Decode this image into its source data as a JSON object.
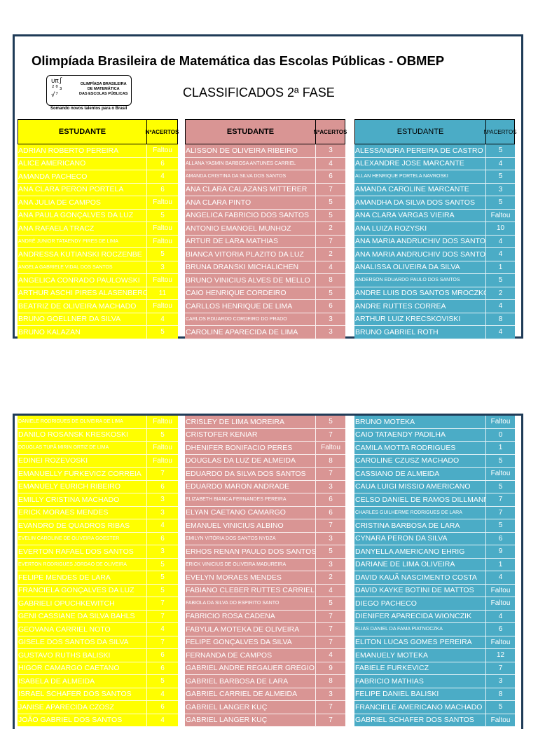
{
  "title": "Olimpíada Brasileira de Matemática das Escolas Públicas - OBMEP",
  "subtitle": "CLASSIFICADOS 2ª FASE",
  "logo": {
    "text": "OLIMPÍADA BRASILEIRA\nDE MATEMÁTICA\nDAS ESCOLAS PÚBLICAS",
    "tagline": "Somando novos talentos para o Brasil"
  },
  "headers": {
    "student": "ESTUDANTE",
    "hits_line1": "Nº",
    "hits_line2": "ACERTOS"
  },
  "colors": {
    "yellow": "#ffff00",
    "pink": "#d99594",
    "blue": "#4bacc6",
    "frame": "#1f3b57"
  },
  "section1": {
    "yellow": [
      [
        "ADRIAN ROBERTO PEREIRA",
        "Faltou"
      ],
      [
        "ALICE AMERICANO",
        "6"
      ],
      [
        "AMANDA PACHECO",
        "4"
      ],
      [
        "ANA CLARA PERON PORTELA",
        "6"
      ],
      [
        "ANA JULIA DE CAMPOS",
        "Faltou"
      ],
      [
        "ANA PAULA GONÇALVES DA LUZ",
        "5"
      ],
      [
        "ANA RAFAELA TRACZ",
        "Faltou"
      ],
      [
        "ANDRÉ JUNIOR TATAENDY PIRES DE LIMA",
        "Faltou"
      ],
      [
        "ANDRESSA KUTIANSKI ROCZENBE",
        "5"
      ],
      [
        "ANGELA GABRIELE VIDAL DOS SANTOS",
        "3"
      ],
      [
        "ANGELICA CONRADO PAULOWSKI",
        "Faltou"
      ],
      [
        "ARTHUR ASCHI PIRES ALASENBERG",
        "11"
      ],
      [
        "BEATRIZ DE OLIVEIRA MACHADO",
        "Faltou"
      ],
      [
        "BRUNO GOELLNER DA SILVA",
        "4"
      ],
      [
        "BRUNO KALAZAN",
        "5"
      ]
    ],
    "pink": [
      [
        "ALISSON DE OLIVEIRA RIBEIRO",
        "3"
      ],
      [
        "ALLANA YASMIN BARBOSA ANTUNES CARRIEL",
        "4"
      ],
      [
        "AMANDA CRISTINA DA SILVA DOS SANTOS",
        "6"
      ],
      [
        "ANA CLARA CALAZANS MITTERER",
        "7"
      ],
      [
        "ANA CLARA PINTO",
        "5"
      ],
      [
        "ANGELICA FABRICIO DOS SANTOS",
        "5"
      ],
      [
        "ANTONIO EMANOEL MUNHOZ",
        "2"
      ],
      [
        "ARTUR DE LARA MATHIAS",
        "7"
      ],
      [
        "BIANCA VITORIA PLAZITO DA LUZ",
        "2"
      ],
      [
        "BRUNA DRANSKI MICHALICHEN",
        "4"
      ],
      [
        "BRUNO VINICIUS ALVES DE MELLO",
        "8"
      ],
      [
        "CAIO HENRIQUE CORDEIRO",
        "5"
      ],
      [
        "CARLLOS HENRIQUE DE LIMA",
        "6"
      ],
      [
        "CARLOS EDUARDO CORDEIRO DO PRADO",
        "3"
      ],
      [
        "CAROLINE APARECIDA DE LIMA",
        "3"
      ]
    ],
    "blue": [
      [
        "ALESSANDRA PEREIRA DE CASTRO",
        "5"
      ],
      [
        "ALEXANDRE JOSE MARCANTE",
        "4"
      ],
      [
        "ALLAN HENRIQUE PORTELA NAVROSKI",
        "5"
      ],
      [
        "AMANDA CAROLINE MARCANTE",
        "3"
      ],
      [
        "AMANDHA DA SILVA DOS SANTOS",
        "5"
      ],
      [
        "ANA CLARA VARGAS VIEIRA",
        "Faltou"
      ],
      [
        "ANA LUIZA ROZYSKI",
        "10"
      ],
      [
        "ANA MARIA ANDRUCHIV DOS SANTOS",
        "4"
      ],
      [
        "ANA MARIA ANDRUCHIV DOS SANTOS",
        "4"
      ],
      [
        "ANALISSA OLIVEIRA DA SILVA",
        "1"
      ],
      [
        "ANDERSON EDUARDO PAULO DOS SANTOS",
        "5"
      ],
      [
        "ANDRE LUIS DOS SANTOS MROCZKO",
        "2"
      ],
      [
        "ANDRE RUTTES CORREA",
        "4"
      ],
      [
        "ARTHUR LUIZ KRECSKOVISKI",
        "8"
      ],
      [
        "BRUNO GABRIEL ROTH",
        "4"
      ]
    ]
  },
  "section2": {
    "yellow": [
      [
        "DANIELE RODRIGUES DE OLIVEIRA DE LIMA",
        "Faltou"
      ],
      [
        "DANILO ROSANSK KRESKOSKI",
        "5"
      ],
      [
        "DOUGLAS TUPÃ MIRIN ORTIZ DE LIMA",
        "Faltou"
      ],
      [
        "EDINEI ROZEVOSKI",
        "Faltou"
      ],
      [
        "EMANUELLY FURKEVICZ CORREIA",
        "7"
      ],
      [
        "EMANUELY EURICH RIBEIRO",
        "6"
      ],
      [
        "EMILLY CRISTINA MACHADO",
        "3"
      ],
      [
        "ERICK MORAES MENDES",
        "3"
      ],
      [
        "EVANDRO DE QUADROS RIBAS",
        "4"
      ],
      [
        "EVELIN CAROLINE DE OLIVEIRA GOESTER",
        "6"
      ],
      [
        "EVERTON RAFAEL DOS SANTOS",
        "3"
      ],
      [
        "EVERTON RODRIGUES JORDAO DE OLIVEIRA",
        "5"
      ],
      [
        "FELIPE MENDES DE LARA",
        "5"
      ],
      [
        "FRANCIELA GONÇALVES DA LUZ",
        "5"
      ],
      [
        "GABRIELI OPUCHKEWITCH",
        "7"
      ],
      [
        "GENI CASSIANE DA SILVA BAHLS",
        "7"
      ],
      [
        "GEOVANA CARRIEL NOTO",
        "4"
      ],
      [
        "GISELE DOS SANTOS DA SILVA",
        "7"
      ],
      [
        "GUSTAVO RUTHS BALISKI",
        "6"
      ],
      [
        "HIGOR CAMARGO CAETANO",
        "6"
      ],
      [
        "ISABELA DE ALMEIDA",
        "5"
      ],
      [
        "ISRAEL SCHAFER DOS SANTOS",
        "4"
      ],
      [
        "JANISE APARECIDA CZOSZ",
        "6"
      ],
      [
        "JOÃO GABRIEL DOS SANTOS",
        "4"
      ]
    ],
    "pink": [
      [
        "CRISLEY DE LIMA MOREIRA",
        "5"
      ],
      [
        "CRISTOFER KENIAR",
        "7"
      ],
      [
        "DHENIFER BONIFACIO PERES",
        "Faltou"
      ],
      [
        "DOUGLAS DA LUZ DE ALMEIDA",
        "8"
      ],
      [
        "EDUARDO DA SILVA DOS SANTOS",
        "7"
      ],
      [
        "EDUARDO MARON ANDRADE",
        "3"
      ],
      [
        "ELIZABETH BIANCA FERNANDES PEREIRA",
        "6"
      ],
      [
        "ELYAN CAETANO CAMARGO",
        "6"
      ],
      [
        "EMANUEL VINICIUS ALBINO",
        "7"
      ],
      [
        "EMILYN VITÓRIA DOS SANTOS NYDZA",
        "3"
      ],
      [
        "ERHOS RENAN PAULO DOS SANTOS",
        "5"
      ],
      [
        "ERICK VINICIUS DE OLIVEIRA MADUREIRA",
        "3"
      ],
      [
        "EVELYN MORAES MENDES",
        "2"
      ],
      [
        "FABIANO CLEBER RUTTES CARRIEL",
        "4"
      ],
      [
        "FABIOLA DA SILVA DO ESPIRITO SANTO",
        "5"
      ],
      [
        "FABRICIO ROSA CADENA",
        "7"
      ],
      [
        "FABYULA MOTEKA DE OLIVEIRA",
        "7"
      ],
      [
        "FELIPE GONÇALVES DA SILVA",
        "7"
      ],
      [
        "FERNANDA DE CAMPOS",
        "4"
      ],
      [
        "GABRIEL ANDRE REGAUER GREGIO",
        "9"
      ],
      [
        "GABRIEL BARBOSA DE LARA",
        "8"
      ],
      [
        "GABRIEL CARRIEL DE ALMEIDA",
        "3"
      ],
      [
        "GABRIEL LANGER KUÇ",
        "7"
      ],
      [
        "GABRIEL LANGER KUÇ",
        "7"
      ]
    ],
    "blue": [
      [
        "BRUNO MOTEKA",
        "Faltou"
      ],
      [
        "CAIO TATAENDY PADILHA",
        "0"
      ],
      [
        "CAMILA MOTTA RODRIGUES",
        "1"
      ],
      [
        "CAROLINE CZUSZ MACHADO",
        "5"
      ],
      [
        "CASSIANO DE ALMEIDA",
        "Faltou"
      ],
      [
        "CAUA LUIGI MISSIO AMERICANO",
        "5"
      ],
      [
        "CELSO DANIEL DE RAMOS DILLMANN",
        "7"
      ],
      [
        "CHARLES GUILHERME RODRIGUES DE LARA",
        "7"
      ],
      [
        "CRISTINA BARBOSA DE LARA",
        "5"
      ],
      [
        "CYNARA PERON DA SILVA",
        "6"
      ],
      [
        "DANYELLA AMERICANO EHRIG",
        "9"
      ],
      [
        "DARIANE DE LIMA OLIVEIRA",
        "1"
      ],
      [
        "DAVID KAUÃ NASCIMENTO COSTA",
        "4"
      ],
      [
        "DAVID KAYKE BOTINI DE MATTOS",
        "Faltou"
      ],
      [
        "DIEGO PACHECO",
        "Faltou"
      ],
      [
        "DIENIFER APARECIDA WIONCZIK",
        "4"
      ],
      [
        "ELIAS DANIEL DA FAMA PIATNOCZKA",
        "6"
      ],
      [
        "ELITON LUCAS GOMES PEREIRA",
        "Faltou"
      ],
      [
        "EMANUELY MOTEKA",
        "12"
      ],
      [
        "FABIELE FURKEVICZ",
        "7"
      ],
      [
        "FABRICIO MATHIAS",
        "3"
      ],
      [
        "FELIPE DANIEL BALISKI",
        "8"
      ],
      [
        "FRANCIELE AMERICANO MACHADO",
        "5"
      ],
      [
        "GABRIEL SCHAFER DOS SANTOS",
        "Faltou"
      ]
    ]
  }
}
